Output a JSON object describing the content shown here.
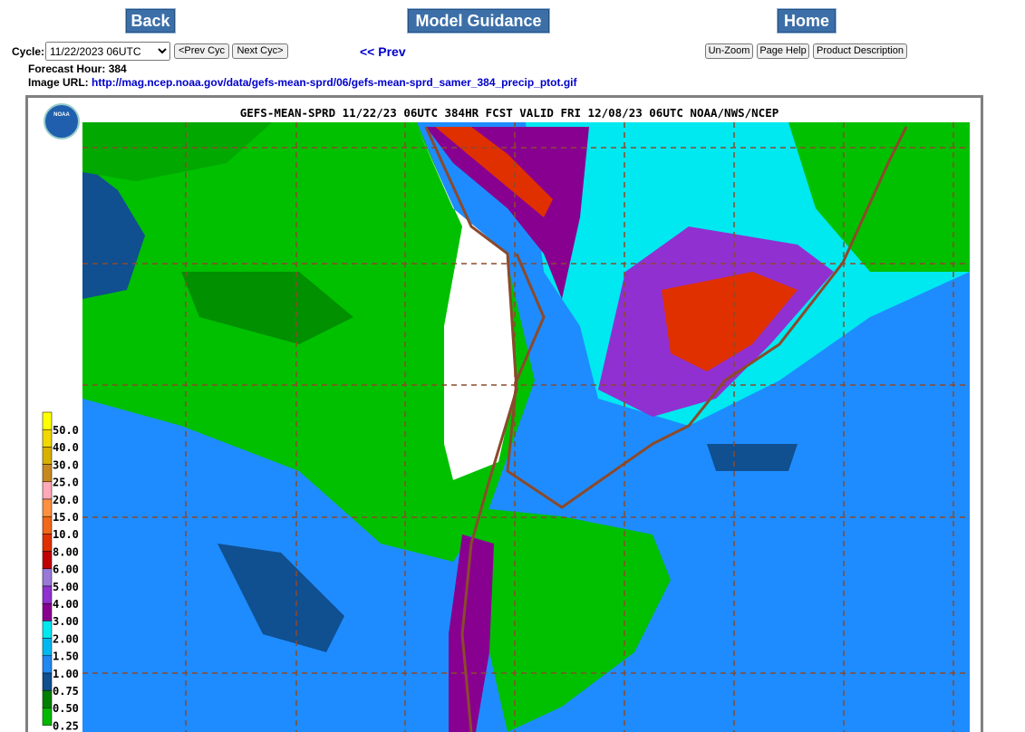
{
  "nav": {
    "back": "Back",
    "model_guidance": "Model Guidance",
    "home": "Home"
  },
  "controls": {
    "cycle_label": "Cycle:",
    "cycle_value": "11/22/2023 06UTC",
    "prev_cyc": "<Prev Cyc",
    "next_cyc": "Next Cyc>",
    "prev": "<< Prev",
    "un_zoom": "Un-Zoom",
    "page_help": "Page Help",
    "product_description": "Product Description"
  },
  "info": {
    "forecast_hour_label": "Forecast Hour:",
    "forecast_hour": "384",
    "image_url_label": "Image URL:",
    "image_url": "http://mag.ncep.noaa.gov/data/gefs-mean-sprd/06/gefs-mean-sprd_samer_384_precip_ptot.gif"
  },
  "map": {
    "title": "GEFS-MEAN-SPRD 11/22/23 06UTC 384HR FCST VALID FRI 12/08/23 06UTC NOAA/NWS/NCEP",
    "logo": "NOAA",
    "legend": [
      {
        "label": "50.0",
        "color": "#ffff00"
      },
      {
        "label": "40.0",
        "color": "#f0d800"
      },
      {
        "label": "30.0",
        "color": "#d8b000"
      },
      {
        "label": "25.0",
        "color": "#c88820"
      },
      {
        "label": "20.0",
        "color": "#ffa8b8"
      },
      {
        "label": "15.0",
        "color": "#ff9040"
      },
      {
        "label": "10.0",
        "color": "#f06818"
      },
      {
        "label": "8.00",
        "color": "#e03000"
      },
      {
        "label": "6.00",
        "color": "#c00000"
      },
      {
        "label": "5.00",
        "color": "#9878d8"
      },
      {
        "label": "4.00",
        "color": "#9030d0"
      },
      {
        "label": "3.00",
        "color": "#880090"
      },
      {
        "label": "2.00",
        "color": "#00e8f0"
      },
      {
        "label": "1.50",
        "color": "#00b8f0"
      },
      {
        "label": "1.00",
        "color": "#2088f0"
      },
      {
        "label": "0.75",
        "color": "#104f90"
      },
      {
        "label": "0.50",
        "color": "#008000"
      },
      {
        "label": "0.25",
        "color": "#00b800"
      }
    ]
  }
}
